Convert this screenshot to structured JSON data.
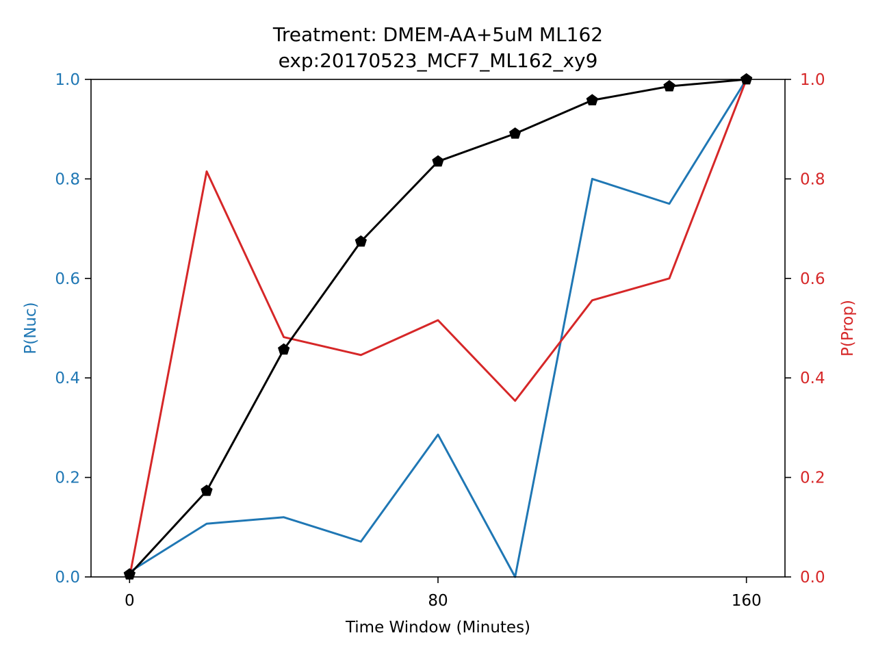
{
  "chart_data": {
    "type": "line",
    "title": "Treatment: DMEM-AA+5uM ML162",
    "subtitle": "exp:20170523_MCF7_ML162_xy9",
    "xlabel": "Time Window (Minutes)",
    "ylabel_left": "P(Nuc)",
    "ylabel_right": "P(Prop)",
    "xlim": [
      -10,
      170
    ],
    "ylim_left": [
      0,
      1
    ],
    "ylim_right": [
      0,
      1
    ],
    "x_ticks": [
      0,
      80,
      160
    ],
    "y_ticks_left": [
      "0.0",
      "0.2",
      "0.4",
      "0.6",
      "0.8",
      "1.0"
    ],
    "y_ticks_right": [
      "0.0",
      "0.2",
      "0.4",
      "0.6",
      "0.8",
      "1.0"
    ],
    "grid": false,
    "colors": {
      "left_axis": "#1f77b4",
      "right_axis": "#d62728",
      "cumulative": "#000000"
    },
    "x": [
      0,
      20,
      40,
      60,
      80,
      100,
      120,
      140,
      160
    ],
    "series": [
      {
        "axis": "left",
        "color": "#1f77b4",
        "marker": "none",
        "values": [
          0.01,
          0.107,
          0.12,
          0.071,
          0.286,
          0.0,
          0.8,
          0.75,
          1.0
        ]
      },
      {
        "axis": "right",
        "color": "#d62728",
        "marker": "none",
        "values": [
          0.0,
          0.815,
          0.482,
          0.446,
          0.516,
          0.354,
          0.556,
          0.6,
          1.0
        ]
      },
      {
        "axis": "right",
        "color": "#000000",
        "marker": "pentagon",
        "values": [
          0.005,
          0.173,
          0.457,
          0.674,
          0.835,
          0.891,
          0.958,
          0.986,
          1.0
        ]
      }
    ]
  }
}
